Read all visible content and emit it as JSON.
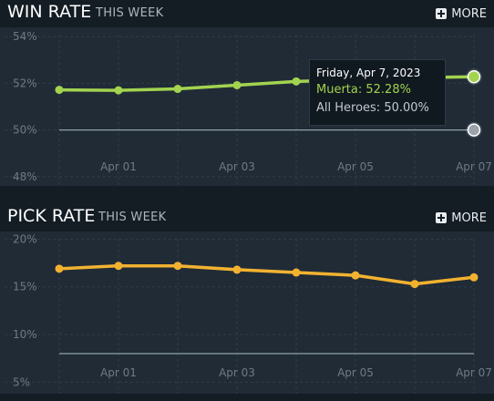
{
  "win_section": {
    "title": "WIN RATE",
    "subtitle": "THIS WEEK",
    "more_label": "MORE"
  },
  "pick_section": {
    "title": "PICK RATE",
    "subtitle": "THIS WEEK",
    "more_label": "MORE"
  },
  "tooltip": {
    "date": "Friday, Apr 7, 2023",
    "hero_line": "Muerta: 52.28%",
    "all_line": "All Heroes: 50.00%"
  },
  "colors": {
    "win_line": "#a3d34f",
    "pick_line": "#f2b230",
    "baseline": "#8fa0aa"
  },
  "chart_data": [
    {
      "type": "line",
      "title": "WIN RATE",
      "subtitle": "THIS WEEK",
      "x": [
        "2023-03-31",
        "2023-04-01",
        "2023-04-02",
        "2023-04-03",
        "2023-04-04",
        "2023-04-05",
        "2023-04-06",
        "2023-04-07"
      ],
      "x_ticks": [
        "Apr 01",
        "Apr 03",
        "Apr 05",
        "Apr 07"
      ],
      "y_ticks": [
        "54%",
        "52%",
        "50%",
        "48%"
      ],
      "ylim": [
        47.6,
        54.4
      ],
      "grid": true,
      "series": [
        {
          "name": "Muerta",
          "values": [
            51.72,
            51.7,
            51.76,
            51.92,
            52.08,
            52.16,
            52.24,
            52.28
          ]
        },
        {
          "name": "All Heroes",
          "values": [
            50.0,
            50.0,
            50.0,
            50.0,
            50.0,
            50.0,
            50.0,
            50.0
          ]
        }
      ]
    },
    {
      "type": "line",
      "title": "PICK RATE",
      "subtitle": "THIS WEEK",
      "x": [
        "2023-03-31",
        "2023-04-01",
        "2023-04-02",
        "2023-04-03",
        "2023-04-04",
        "2023-04-05",
        "2023-04-06",
        "2023-04-07"
      ],
      "x_ticks": [
        "Apr 01",
        "Apr 03",
        "Apr 05",
        "Apr 07"
      ],
      "y_ticks": [
        "20%",
        "15%",
        "10%",
        "5%"
      ],
      "ylim": [
        3.8,
        20.8
      ],
      "grid": true,
      "series": [
        {
          "name": "Muerta",
          "values": [
            16.9,
            17.2,
            17.2,
            16.8,
            16.5,
            16.2,
            15.3,
            16.0
          ]
        },
        {
          "name": "All Heroes",
          "values": [
            8.0,
            8.0,
            8.0,
            8.0,
            8.0,
            8.0,
            8.0,
            8.0
          ]
        }
      ]
    }
  ]
}
